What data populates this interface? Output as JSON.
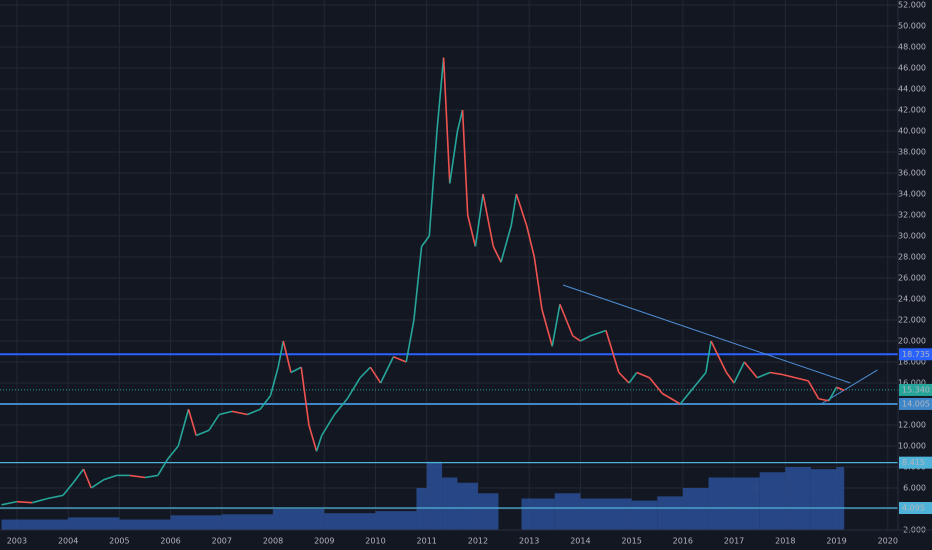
{
  "chart_data": {
    "type": "line",
    "x": [
      2002.7,
      2003.0,
      2003.3,
      2003.6,
      2003.9,
      2004.1,
      2004.3,
      2004.45,
      2004.7,
      2004.95,
      2005.2,
      2005.5,
      2005.75,
      2005.95,
      2006.15,
      2006.35,
      2006.5,
      2006.75,
      2006.95,
      2007.2,
      2007.5,
      2007.75,
      2007.95,
      2008.1,
      2008.2,
      2008.35,
      2008.55,
      2008.7,
      2008.85,
      2008.95,
      2009.2,
      2009.45,
      2009.7,
      2009.9,
      2010.1,
      2010.35,
      2010.6,
      2010.75,
      2010.9,
      2011.05,
      2011.2,
      2011.33,
      2011.45,
      2011.6,
      2011.7,
      2011.8,
      2011.95,
      2012.1,
      2012.3,
      2012.45,
      2012.65,
      2012.75,
      2012.95,
      2013.1,
      2013.25,
      2013.45,
      2013.6,
      2013.85,
      2014.0,
      2014.2,
      2014.5,
      2014.75,
      2014.95,
      2015.1,
      2015.35,
      2015.6,
      2015.95,
      2016.2,
      2016.45,
      2016.55,
      2016.85,
      2017.0,
      2017.2,
      2017.45,
      2017.7,
      2017.95,
      2018.2,
      2018.45,
      2018.65,
      2018.85,
      2019.0,
      2019.15
    ],
    "series": [
      {
        "up_color": "#26a69a",
        "down_color": "#ef5350",
        "values": [
          4.4,
          4.7,
          4.6,
          5.0,
          5.3,
          6.5,
          7.8,
          6.0,
          6.8,
          7.2,
          7.2,
          7.0,
          7.2,
          8.8,
          10.0,
          13.5,
          11.0,
          11.5,
          13.0,
          13.3,
          13.0,
          13.5,
          14.8,
          17.5,
          20.0,
          17.0,
          17.5,
          12.0,
          9.5,
          11.0,
          13.0,
          14.5,
          16.5,
          17.5,
          16.0,
          18.5,
          18.0,
          22.0,
          29.0,
          30.0,
          40.0,
          47.0,
          35.0,
          40.0,
          42.0,
          32.0,
          29.0,
          34.0,
          29.0,
          27.5,
          31.0,
          34.0,
          31.0,
          28.0,
          23.0,
          19.5,
          23.5,
          20.5,
          20.0,
          20.5,
          21.0,
          17.0,
          16.0,
          17.0,
          16.5,
          15.0,
          14.0,
          15.5,
          17.0,
          20.0,
          17.0,
          16.0,
          18.0,
          16.5,
          17.0,
          16.8,
          16.5,
          16.2,
          14.5,
          14.3,
          15.6,
          15.3
        ]
      }
    ],
    "volume": {
      "color": "#2a4f96",
      "x": [
        2002.7,
        2004.0,
        2005.0,
        2006.0,
        2007.0,
        2008.0,
        2009.0,
        2010.0,
        2010.8,
        2011.0,
        2011.3,
        2011.6,
        2012.0,
        2012.4,
        2012.85,
        2013.5,
        2014.0,
        2015.0,
        2015.5,
        2016.0,
        2016.5,
        2017.0,
        2017.5,
        2018.0,
        2018.5,
        2019.0
      ],
      "values": [
        3.0,
        3.2,
        3.0,
        3.4,
        3.5,
        4.0,
        3.6,
        3.8,
        6.0,
        8.5,
        7.0,
        6.5,
        5.5,
        null,
        5.0,
        5.5,
        5.0,
        4.8,
        5.2,
        6.0,
        7.0,
        7.0,
        7.5,
        8.0,
        7.8,
        8.0
      ]
    },
    "levels": [
      {
        "value": 18.735,
        "color": "#2962ff"
      },
      {
        "value": 14.005,
        "color": "#3f87c9"
      },
      {
        "value": 8.415,
        "color": "#4fb3d9"
      },
      {
        "value": 4.095,
        "color": "#4fb3d9"
      }
    ],
    "last_price": {
      "value": 15.34,
      "label": "15.340",
      "color": "#26a69a"
    },
    "trendlines": [
      {
        "x": [
          2013.66,
          2019.27
        ],
        "values": [
          25.33,
          16.0
        ],
        "color": "#4f8fd6"
      },
      {
        "x": [
          2018.7,
          2019.8
        ],
        "values": [
          14.0,
          17.24
        ],
        "color": "#4f8fd6"
      }
    ],
    "xlim": [
      2002.67,
      2020.2
    ],
    "xticks": [
      2003,
      2004,
      2005,
      2006,
      2007,
      2008,
      2009,
      2010,
      2011,
      2012,
      2013,
      2014,
      2015,
      2016,
      2017,
      2018,
      2019,
      2020
    ],
    "ylim": [
      2,
      52
    ],
    "yticks": [
      {
        "value": 2,
        "label": "2.000"
      },
      {
        "value": 4,
        "label": "4.000"
      },
      {
        "value": 6,
        "label": "6.000"
      },
      {
        "value": 8,
        "label": "8.000"
      },
      {
        "value": 10,
        "label": "10.000"
      },
      {
        "value": 12,
        "label": "12.000"
      },
      {
        "value": 14,
        "label": "14.000"
      },
      {
        "value": 16,
        "label": "16.000"
      },
      {
        "value": 18,
        "label": "18.000"
      },
      {
        "value": 20,
        "label": "20.000"
      },
      {
        "value": 22,
        "label": "22.000"
      },
      {
        "value": 24,
        "label": "24.000"
      },
      {
        "value": 26,
        "label": "26.000"
      },
      {
        "value": 28,
        "label": "28.000"
      },
      {
        "value": 30,
        "label": "30.000"
      },
      {
        "value": 32,
        "label": "32.000"
      },
      {
        "value": 34,
        "label": "34.000"
      },
      {
        "value": 36,
        "label": "36.000"
      },
      {
        "value": 38,
        "label": "38.000"
      },
      {
        "value": 40,
        "label": "40.000"
      },
      {
        "value": 42,
        "label": "42.000"
      },
      {
        "value": 44,
        "label": "44.000"
      },
      {
        "value": 46,
        "label": "46.000"
      },
      {
        "value": 48,
        "label": "48.000"
      },
      {
        "value": 50,
        "label": "50.000"
      },
      {
        "value": 52,
        "label": "52.000"
      }
    ],
    "grid": true
  }
}
